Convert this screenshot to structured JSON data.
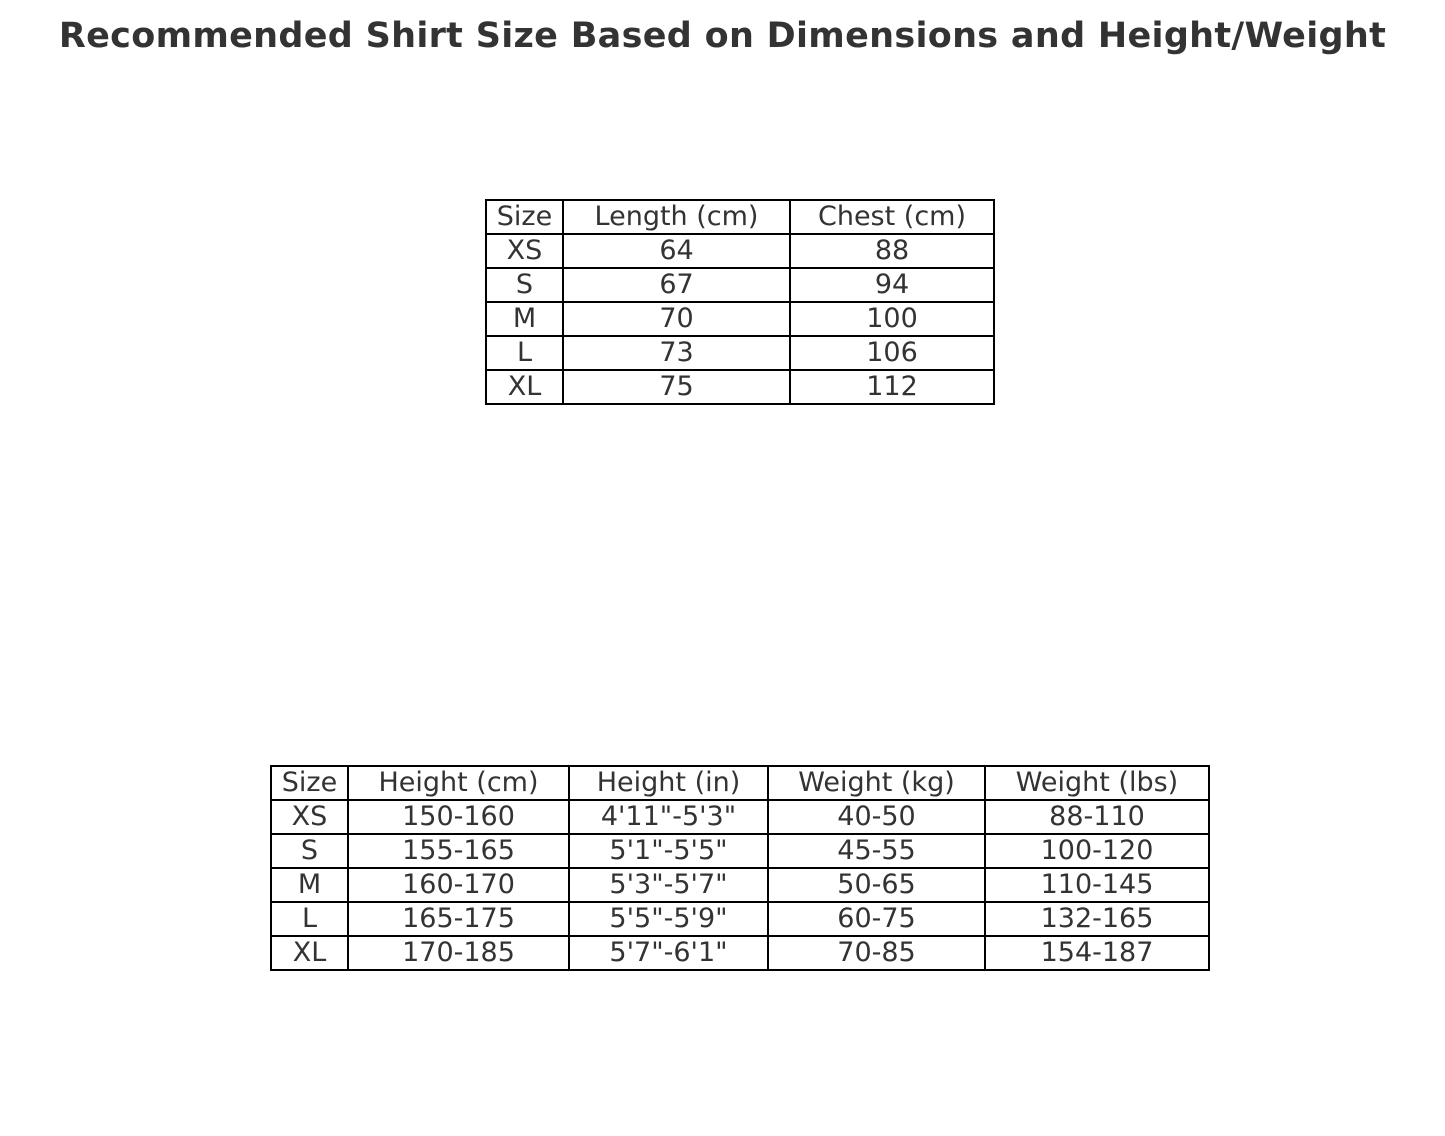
{
  "chart_data": [
    {
      "type": "table",
      "title": "Recommended Shirt Size Based on Dimensions and Height/Weight",
      "columns": [
        "Size",
        "Length (cm)",
        "Chest (cm)"
      ],
      "rows": [
        [
          "XS",
          "64",
          "88"
        ],
        [
          "S",
          "67",
          "94"
        ],
        [
          "M",
          "70",
          "100"
        ],
        [
          "L",
          "73",
          "106"
        ],
        [
          "XL",
          "75",
          "112"
        ]
      ]
    },
    {
      "type": "table",
      "columns": [
        "Size",
        "Height (cm)",
        "Height (in)",
        "Weight (kg)",
        "Weight (lbs)"
      ],
      "rows": [
        [
          "XS",
          "150-160",
          "4'11\"-5'3\"",
          "40-50",
          "88-110"
        ],
        [
          "S",
          "155-165",
          "5'1\"-5'5\"",
          "45-55",
          "100-120"
        ],
        [
          "M",
          "160-170",
          "5'3\"-5'7\"",
          "50-65",
          "110-145"
        ],
        [
          "L",
          "165-175",
          "5'5\"-5'9\"",
          "60-75",
          "132-165"
        ],
        [
          "XL",
          "170-185",
          "5'7\"-6'1\"",
          "70-85",
          "154-187"
        ]
      ]
    }
  ]
}
